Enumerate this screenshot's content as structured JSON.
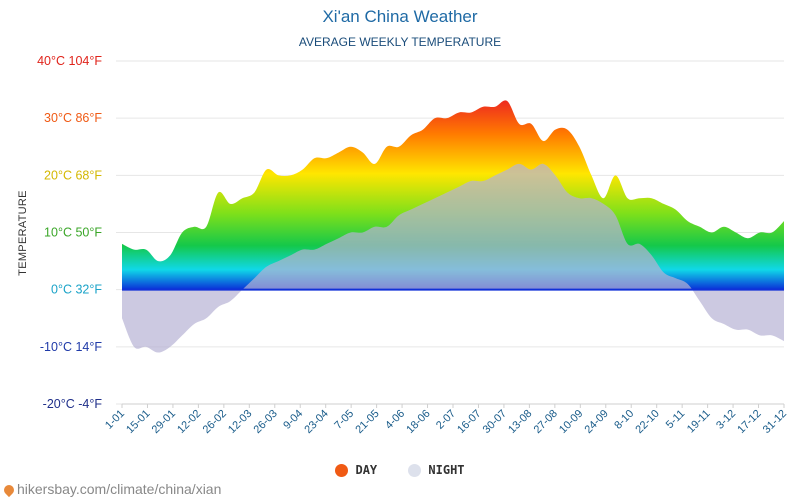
{
  "header": {
    "title": "Xi'an China Weather",
    "subtitle": "AVERAGE WEEKLY TEMPERATURE"
  },
  "legend": {
    "day_label": "DAY",
    "night_label": "NIGHT",
    "day_color": "#f05a14",
    "night_color": "#dde1ec"
  },
  "source": {
    "text": "hikersbay.com/climate/china/xian"
  },
  "chart_data": {
    "type": "area",
    "title": "Xi'an China Weather",
    "subtitle": "AVERAGE WEEKLY TEMPERATURE",
    "ylabel": "TEMPERATURE",
    "xlabel": "",
    "ylim": [
      -20,
      40
    ],
    "grid": true,
    "legend_position": "bottom",
    "y_ticks": [
      {
        "value": 40,
        "label": "40°C 104°F",
        "color": "#e0241b"
      },
      {
        "value": 30,
        "label": "30°C 86°F",
        "color": "#f05a14"
      },
      {
        "value": 20,
        "label": "20°C 68°F",
        "color": "#d4b800"
      },
      {
        "value": 10,
        "label": "10°C 50°F",
        "color": "#3aa628"
      },
      {
        "value": 0,
        "label": "0°C 32°F",
        "color": "#1aa3c8"
      },
      {
        "value": -10,
        "label": "-10°C 14°F",
        "color": "#1f3aa8"
      },
      {
        "value": -20,
        "label": "-20°C -4°F",
        "color": "#1f2f8a"
      }
    ],
    "x_tick_labels": [
      "1-01",
      "15-01",
      "29-01",
      "12-02",
      "26-02",
      "12-03",
      "26-03",
      "9-04",
      "23-04",
      "7-05",
      "21-05",
      "4-06",
      "18-06",
      "2-07",
      "16-07",
      "30-07",
      "13-08",
      "27-08",
      "10-09",
      "24-09",
      "8-10",
      "22-10",
      "5-11",
      "19-11",
      "3-12",
      "17-12",
      "31-12"
    ],
    "series": [
      {
        "name": "DAY",
        "values": [
          8,
          7,
          7,
          5,
          6,
          10,
          11,
          11,
          17,
          15,
          16,
          17,
          21,
          20,
          20,
          21,
          23,
          23,
          24,
          25,
          24,
          22,
          25,
          25,
          27,
          28,
          30,
          30,
          31,
          31,
          32,
          32,
          33,
          29,
          29,
          26,
          28,
          28,
          25,
          20,
          16,
          20,
          16,
          16,
          16,
          15,
          14,
          12,
          11,
          10,
          11,
          10,
          9,
          10,
          10,
          12
        ]
      },
      {
        "name": "NIGHT",
        "values": [
          -5,
          -10,
          -10,
          -11,
          -10,
          -8,
          -6,
          -5,
          -3,
          -2,
          0,
          2,
          4,
          5,
          6,
          7,
          7,
          8,
          9,
          10,
          10,
          11,
          11,
          13,
          14,
          15,
          16,
          17,
          18,
          19,
          19,
          20,
          21,
          22,
          21,
          22,
          20,
          17,
          16,
          16,
          15,
          13,
          8,
          8,
          6,
          3,
          2,
          1,
          -2,
          -5,
          -6,
          -7,
          -7,
          -8,
          -8,
          -9
        ]
      }
    ]
  }
}
